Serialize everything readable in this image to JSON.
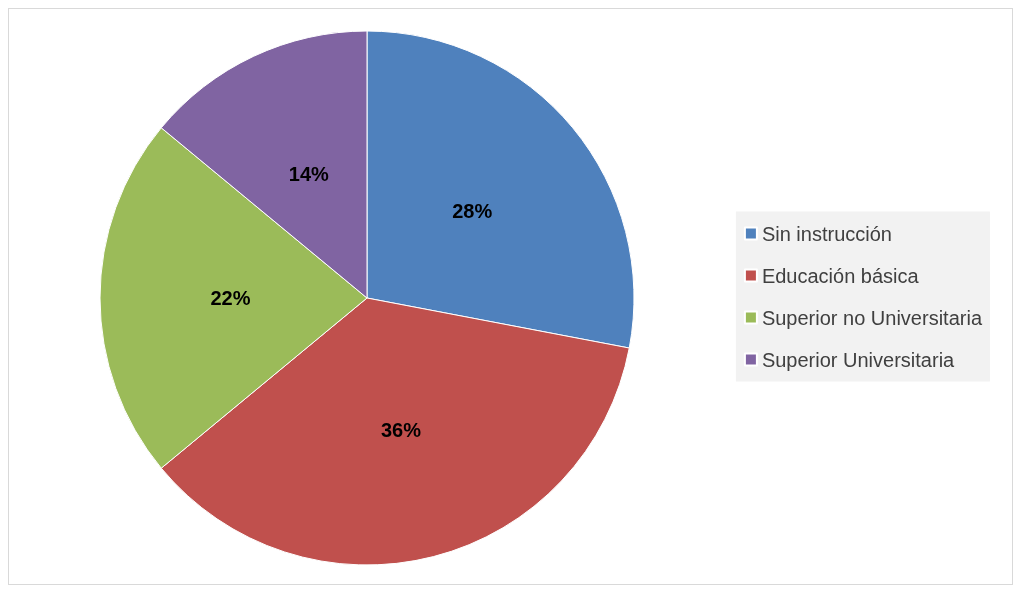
{
  "chart_data": {
    "type": "pie",
    "categories": [
      "Sin instrucción",
      "Educación básica",
      "Superior no Universitaria",
      "Superior Universitaria"
    ],
    "values": [
      28,
      36,
      22,
      14
    ],
    "colors": [
      "#4f81bd",
      "#c0504d",
      "#9bbb59",
      "#8064a2"
    ],
    "value_labels": [
      "28%",
      "36%",
      "22%",
      "14%"
    ],
    "legend": "right"
  }
}
